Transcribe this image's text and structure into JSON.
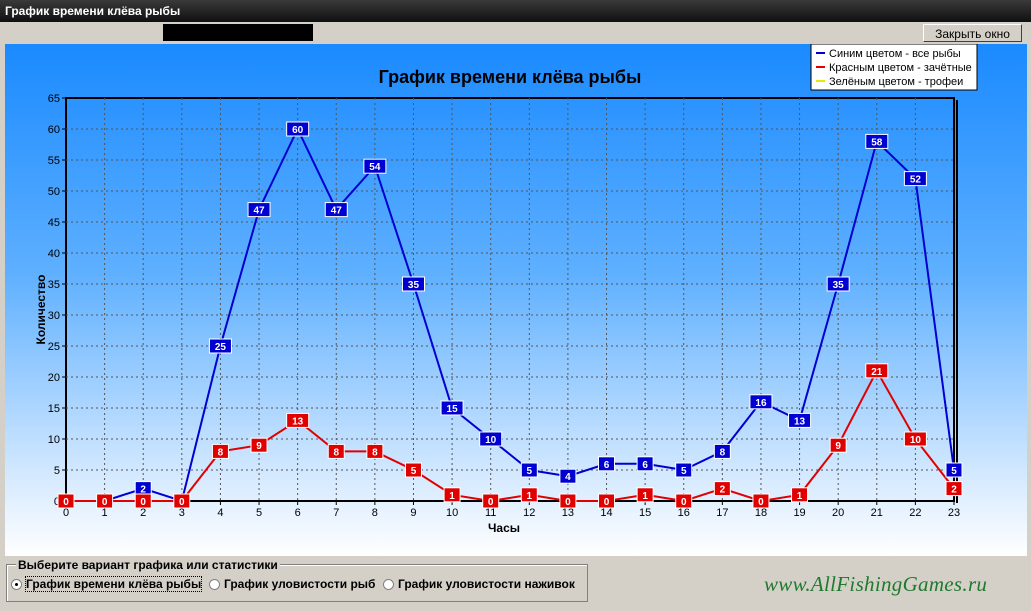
{
  "window": {
    "title": "График времени клёва рыбы"
  },
  "toolbar": {
    "close_label": "Закрыть окно"
  },
  "legend": {
    "items": [
      {
        "label": "Синим цветом - все рыбы",
        "color": "#0000d0"
      },
      {
        "label": "Красным цветом - зачётные",
        "color": "#e00000"
      },
      {
        "label": "Зелёным цветом - трофеи",
        "color": "#e8e800"
      }
    ]
  },
  "chart_data": {
    "type": "line",
    "title": "График времени клёва рыбы",
    "xlabel": "Часы",
    "ylabel": "Количество",
    "x": [
      0,
      1,
      2,
      3,
      4,
      5,
      6,
      7,
      8,
      9,
      10,
      11,
      12,
      13,
      14,
      15,
      16,
      17,
      18,
      19,
      20,
      21,
      22,
      23
    ],
    "ylim": [
      0,
      65
    ],
    "yticks": [
      0,
      5,
      10,
      15,
      20,
      25,
      30,
      35,
      40,
      45,
      50,
      55,
      60,
      65
    ],
    "grid": true,
    "legend_position": "top-right",
    "series": [
      {
        "name": "Синим цветом - все рыбы",
        "color": "#0000d0",
        "values": [
          0,
          0,
          2,
          0,
          25,
          47,
          60,
          47,
          54,
          35,
          15,
          10,
          5,
          4,
          6,
          6,
          5,
          8,
          16,
          13,
          35,
          58,
          52,
          5
        ],
        "labels_shown": [
          false,
          false,
          true,
          false,
          true,
          true,
          true,
          true,
          true,
          true,
          true,
          true,
          true,
          true,
          true,
          true,
          true,
          true,
          true,
          true,
          true,
          true,
          true,
          true
        ]
      },
      {
        "name": "Красным цветом - зачётные",
        "color": "#e00000",
        "values": [
          0,
          0,
          0,
          0,
          8,
          9,
          13,
          8,
          8,
          5,
          1,
          0,
          1,
          0,
          0,
          1,
          0,
          2,
          0,
          1,
          9,
          21,
          10,
          2
        ],
        "labels_shown": [
          true,
          true,
          true,
          true,
          true,
          true,
          true,
          true,
          true,
          true,
          true,
          true,
          true,
          true,
          true,
          true,
          true,
          true,
          true,
          true,
          true,
          true,
          true,
          true
        ]
      }
    ]
  },
  "bottom": {
    "group_label": "Выберите вариант графика или статистики",
    "options": [
      {
        "label": "График времени клёва рыбы",
        "selected": true
      },
      {
        "label": "График уловистости рыб",
        "selected": false
      },
      {
        "label": "График уловистости наживок",
        "selected": false
      }
    ],
    "site": "www.AllFishingGames.ru"
  }
}
